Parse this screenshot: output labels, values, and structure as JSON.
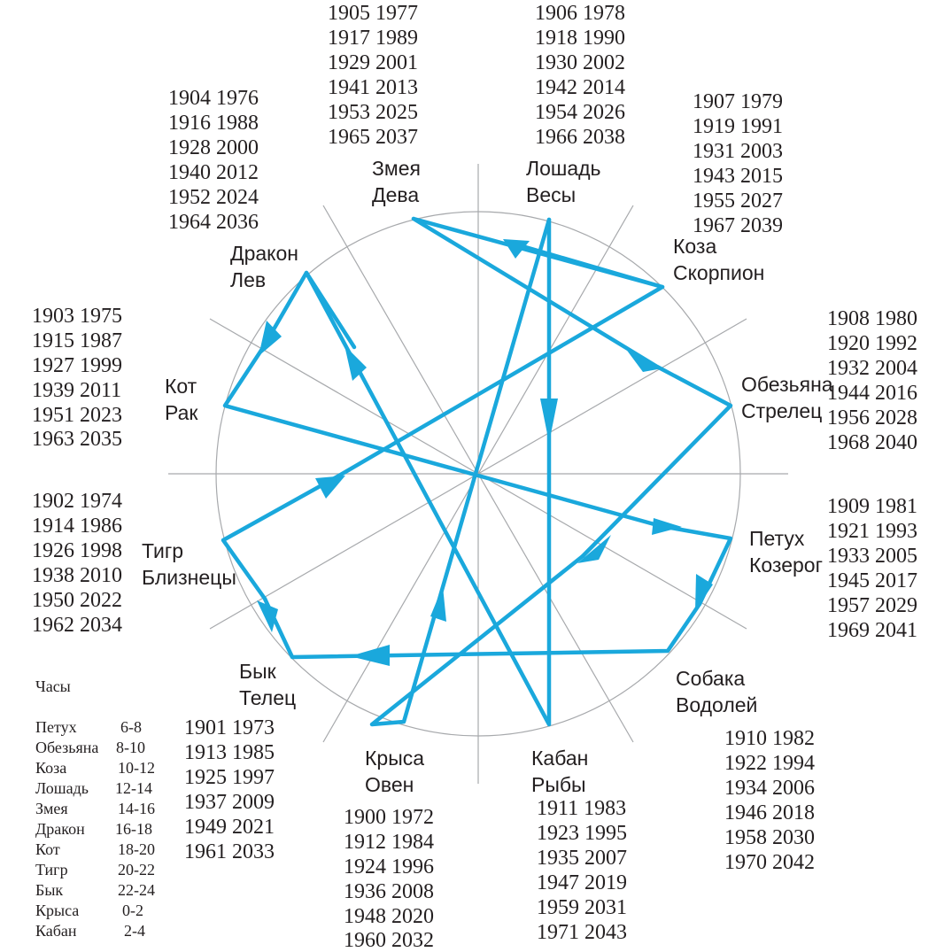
{
  "colors": {
    "path": "#1aa8dc",
    "lines": "#a7a9ac",
    "text": "#231f20"
  },
  "signs": [
    {
      "id": "zmeya",
      "animal": "Змея",
      "zodiac": "Дева",
      "years": [
        "1905 1977",
        "1917 1989",
        "1929 2001",
        "1941 2013",
        "1953 2025",
        "1965 2037"
      ]
    },
    {
      "id": "loshad",
      "animal": "Лошадь",
      "zodiac": "Весы",
      "years": [
        "1906 1978",
        "1918 1990",
        "1930 2002",
        "1942 2014",
        "1954 2026",
        "1966 2038"
      ]
    },
    {
      "id": "koza",
      "animal": "Коза",
      "zodiac": "Скорпион",
      "years": [
        "1907 1979",
        "1919 1991",
        "1931 2003",
        "1943 2015",
        "1955 2027",
        "1967 2039"
      ]
    },
    {
      "id": "obezyana",
      "animal": "Обезьяна",
      "zodiac": "Стрелец",
      "years": [
        "1908 1980",
        "1920 1992",
        "1932 2004",
        "1944 2016",
        "1956 2028",
        "1968 2040"
      ]
    },
    {
      "id": "petuh",
      "animal": "Петух",
      "zodiac": "Козерог",
      "years": [
        "1909 1981",
        "1921 1993",
        "1933 2005",
        "1945 2017",
        "1957 2029",
        "1969 2041"
      ]
    },
    {
      "id": "sobaka",
      "animal": "Собака",
      "zodiac": "Водолей",
      "years": [
        "1910 1982",
        "1922 1994",
        "1934 2006",
        "1946 2018",
        "1958 2030",
        "1970 2042"
      ]
    },
    {
      "id": "kaban",
      "animal": "Кабан",
      "zodiac": "Рыбы",
      "years": [
        "1911 1983",
        "1923 1995",
        "1935 2007",
        "1947 2019",
        "1959 2031",
        "1971 2043"
      ]
    },
    {
      "id": "krysa",
      "animal": "Крыса",
      "zodiac": "Овен",
      "years": [
        "1900 1972",
        "1912 1984",
        "1924 1996",
        "1936 2008",
        "1948 2020",
        "1960 2032"
      ]
    },
    {
      "id": "byk",
      "animal": "Бык",
      "zodiac": "Телец",
      "years": [
        "1901 1973",
        "1913 1985",
        "1925 1997",
        "1937 2009",
        "1949 2021",
        "1961 2033"
      ]
    },
    {
      "id": "tigr",
      "animal": "Тигр",
      "zodiac": "Близнецы",
      "years": [
        "1902 1974",
        "1914 1986",
        "1926 1998",
        "1938 2010",
        "1950 2022",
        "1962 2034"
      ]
    },
    {
      "id": "kot",
      "animal": "Кот",
      "zodiac": "Рак",
      "years": [
        "1903 1975",
        "1915 1987",
        "1927 1999",
        "1939 2011",
        "1951 2023",
        "1963 2035"
      ]
    },
    {
      "id": "drakon",
      "animal": "Дракон",
      "zodiac": "Лев",
      "years": [
        "1904 1976",
        "1916 1988",
        "1928 2000",
        "1940 2012",
        "1952 2024",
        "1964 2036"
      ]
    }
  ],
  "hours": {
    "title": "Часы",
    "rows": [
      {
        "animal": "Петух",
        "range": "6-8"
      },
      {
        "animal": "Обезьяна",
        "range": "8-10"
      },
      {
        "animal": "Коза",
        "range": "10-12"
      },
      {
        "animal": "Лошадь",
        "range": "12-14"
      },
      {
        "animal": "Змея",
        "range": "14-16"
      },
      {
        "animal": "Дракон",
        "range": "16-18"
      },
      {
        "animal": "Кот",
        "range": "18-20"
      },
      {
        "animal": "Тигр",
        "range": "20-22"
      },
      {
        "animal": "Бык",
        "range": "22-24"
      },
      {
        "animal": "Крыса",
        "range": "0-2"
      },
      {
        "animal": "Кабан",
        "range": "2-4"
      }
    ]
  }
}
